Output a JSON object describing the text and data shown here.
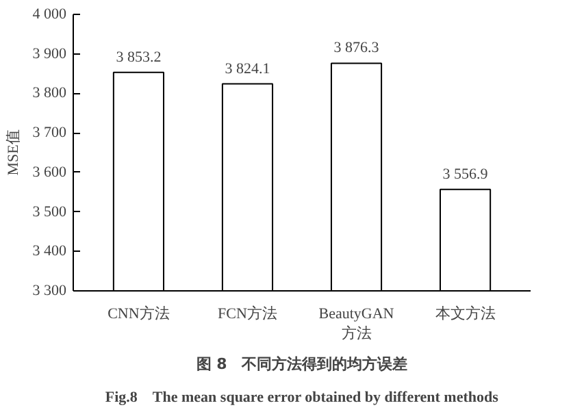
{
  "chart_data": {
    "type": "bar",
    "title": "图 8　不同方法得到的均方误差",
    "subtitle": "Fig.8　The mean square error obtained by different methods",
    "ylabel": "MSE值",
    "categories": [
      "CNN方法",
      "FCN方法",
      "BeautyGAN\n方法",
      "本文方法"
    ],
    "values": [
      3853.2,
      3824.1,
      3876.3,
      3556.9
    ],
    "color": "#ffffff",
    "value_labels": [
      "3 853.2",
      "3 824.1",
      "3 876.3",
      "3 556.9"
    ],
    "ylim": [
      3300,
      4000
    ],
    "yticks": [
      {
        "value": 3300,
        "label": "3 300"
      },
      {
        "value": 3400,
        "label": "3 400"
      },
      {
        "value": 3500,
        "label": "3 500"
      },
      {
        "value": 3600,
        "label": "3 600"
      },
      {
        "value": 3700,
        "label": "3 700"
      },
      {
        "value": 3800,
        "label": "3 800"
      },
      {
        "value": 3900,
        "label": "3 900"
      },
      {
        "value": 4000,
        "label": "4 000"
      }
    ],
    "grid": false
  }
}
